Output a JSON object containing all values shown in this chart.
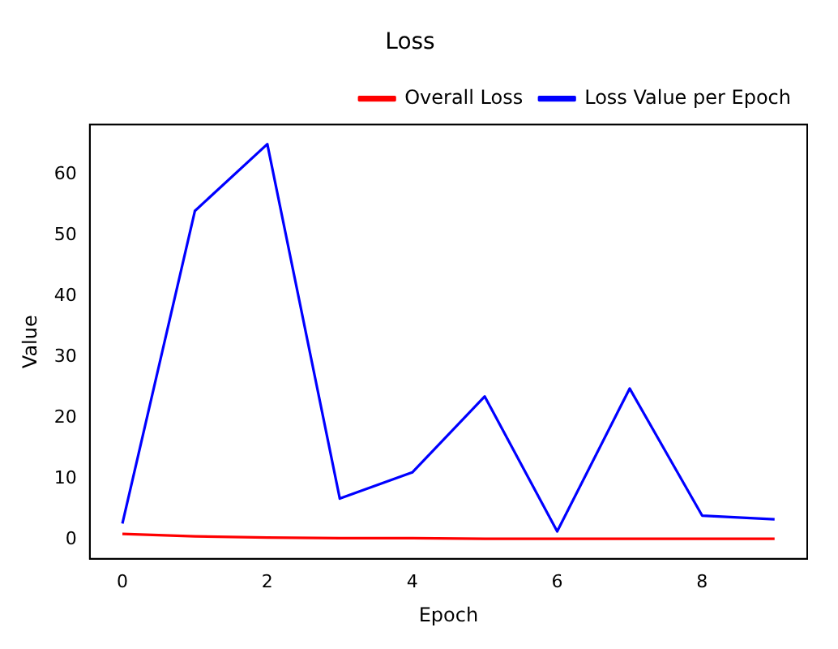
{
  "chart_data": {
    "type": "line",
    "title": "Loss",
    "xlabel": "Epoch",
    "ylabel": "Value",
    "x": [
      0,
      1,
      2,
      3,
      4,
      5,
      6,
      7,
      8,
      9
    ],
    "series": [
      {
        "name": "Overall Loss",
        "color": "#ff0000",
        "values": [
          0.9,
          0.5,
          0.3,
          0.2,
          0.2,
          0.1,
          0.1,
          0.1,
          0.1,
          0.1
        ]
      },
      {
        "name": "Loss Value per Epoch",
        "color": "#0000ff",
        "values": [
          2.6,
          54,
          65,
          6.7,
          11,
          23.5,
          1.3,
          24.8,
          3.9,
          3.3
        ]
      }
    ],
    "xlim": [
      -0.45,
      9.45
    ],
    "ylim": [
      -3.2,
      68.2
    ],
    "xticks": [
      0,
      2,
      4,
      6,
      8
    ],
    "yticks": [
      0,
      10,
      20,
      30,
      40,
      50,
      60
    ],
    "grid": false,
    "legend": "top right",
    "marker": "none",
    "line_style": "solid"
  }
}
